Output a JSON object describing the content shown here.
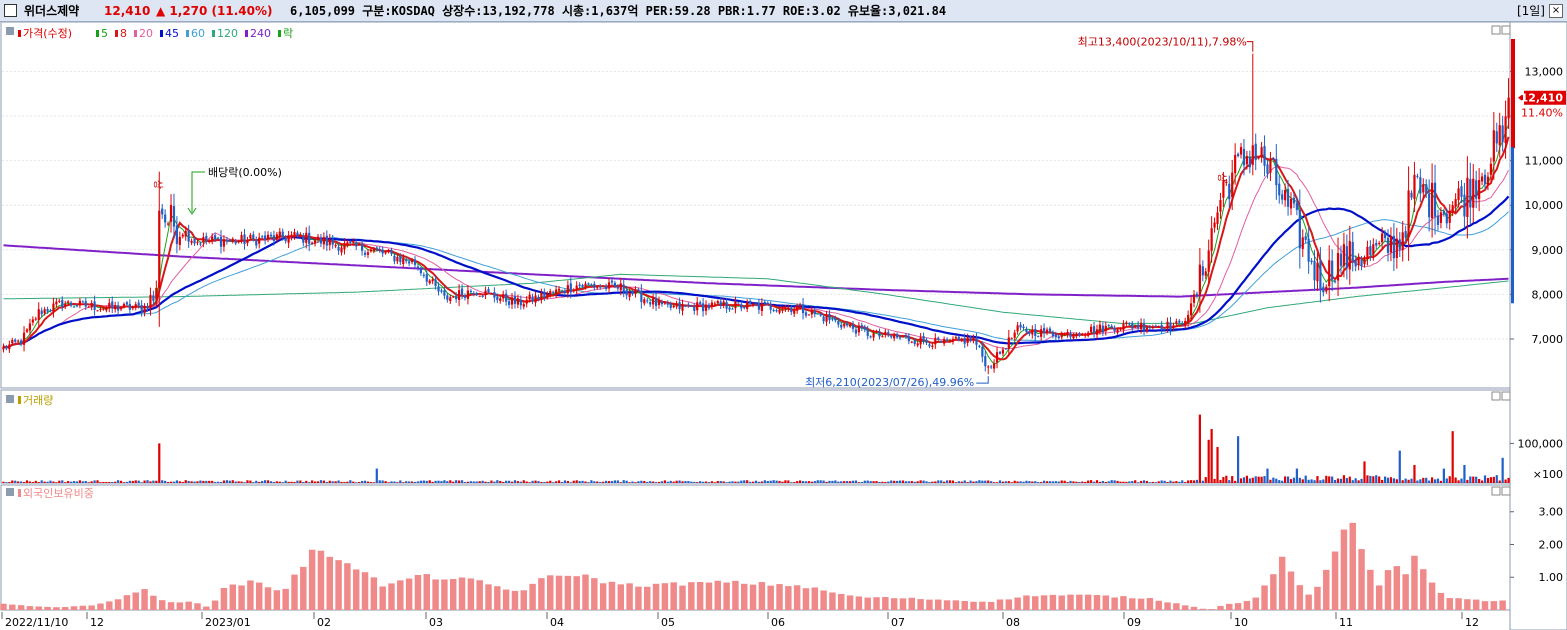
{
  "header": {
    "stock_name": "위더스제약",
    "price": "12,410",
    "change": "▲ 1,270 (11.40%)",
    "info": "6,105,099  구분:KOSDAQ 상장수:13,192,778 시총:1,637억 PER:59.28 PBR:1.77 ROE:3.02 유보율:3,021.84",
    "period": "[1일]",
    "close": "×"
  },
  "colors": {
    "up": "#e00000",
    "down": "#1f5fc8",
    "ma5": "#19a019",
    "ma8": "#d81818",
    "ma20": "#e060a0",
    "ma45": "#0010c8",
    "ma60": "#40a0d8",
    "ma120": "#30a878",
    "ma240": "#8020c8",
    "volume_up": "#e00000",
    "volume_down": "#1f5fc8",
    "foreign_bar": "#f08a8a"
  },
  "chart_data": [
    {
      "type": "candlestick",
      "title": "가격(수정)",
      "legend": [
        {
          "label": "가격(수정)",
          "color": "#e00000"
        },
        {
          "label": "5",
          "color": "#19a019"
        },
        {
          "label": "8",
          "color": "#d81818"
        },
        {
          "label": "20",
          "color": "#e060a0"
        },
        {
          "label": "45",
          "color": "#0010c8"
        },
        {
          "label": "60",
          "color": "#40a0d8"
        },
        {
          "label": "120",
          "color": "#30a878"
        },
        {
          "label": "240",
          "color": "#8020c8"
        },
        {
          "label": "락",
          "color": "#19a019"
        }
      ],
      "y_ticks": [
        "7,000",
        "8,000",
        "9,000",
        "10,000",
        "11,000",
        "12,000",
        "13,000"
      ],
      "ylim": [
        5900,
        13750
      ],
      "x_labels": [
        "2022/11/10",
        "12",
        "2023/01",
        "02",
        "03",
        "04",
        "05",
        "06",
        "07",
        "08",
        "09",
        "10",
        "11",
        "12"
      ],
      "current_price_label": "12,410",
      "current_change_label": "11.40%",
      "annotations": {
        "high": "최고13,400(2023/10/11),7.98%",
        "low": "최저6,210(2023/07/26),49.96%",
        "dividend": "배당락(0.00%)",
        "limit_up": "상"
      },
      "anchors": [
        [
          0,
          6800
        ],
        [
          6,
          6950
        ],
        [
          12,
          7600
        ],
        [
          20,
          7800
        ],
        [
          35,
          7700
        ],
        [
          48,
          7700
        ],
        [
          52,
          8000
        ],
        [
          53,
          10100
        ],
        [
          55,
          9700
        ],
        [
          60,
          9500
        ],
        [
          65,
          9200
        ],
        [
          80,
          9200
        ],
        [
          100,
          9300
        ],
        [
          115,
          9100
        ],
        [
          125,
          9000
        ],
        [
          140,
          8700
        ],
        [
          150,
          7900
        ],
        [
          160,
          8100
        ],
        [
          175,
          7800
        ],
        [
          195,
          8200
        ],
        [
          210,
          8150
        ],
        [
          225,
          7700
        ],
        [
          245,
          7750
        ],
        [
          270,
          7700
        ],
        [
          295,
          7100
        ],
        [
          320,
          6900
        ],
        [
          330,
          7000
        ],
        [
          335,
          6350
        ],
        [
          345,
          7200
        ],
        [
          360,
          7100
        ],
        [
          380,
          7300
        ],
        [
          400,
          7300
        ],
        [
          405,
          7800
        ],
        [
          415,
          10400
        ],
        [
          425,
          11300
        ],
        [
          432,
          10600
        ],
        [
          440,
          9500
        ],
        [
          448,
          8300
        ],
        [
          455,
          8800
        ],
        [
          465,
          8900
        ],
        [
          475,
          9200
        ],
        [
          480,
          10400
        ],
        [
          490,
          9900
        ],
        [
          497,
          10200
        ],
        [
          505,
          11000
        ],
        [
          511,
          11600
        ],
        [
          512,
          12410
        ]
      ],
      "high_point": {
        "x": 425,
        "price": 13400
      },
      "low_point": {
        "x": 335,
        "price": 6210
      },
      "ma240_points": [
        [
          0,
          9100
        ],
        [
          60,
          8850
        ],
        [
          120,
          8650
        ],
        [
          180,
          8450
        ],
        [
          240,
          8250
        ],
        [
          300,
          8100
        ],
        [
          350,
          8000
        ],
        [
          400,
          7950
        ],
        [
          430,
          8050
        ],
        [
          460,
          8150
        ],
        [
          490,
          8280
        ],
        [
          512,
          8350
        ]
      ],
      "ma120_points": [
        [
          0,
          7900
        ],
        [
          60,
          7950
        ],
        [
          120,
          8050
        ],
        [
          180,
          8250
        ],
        [
          210,
          8450
        ],
        [
          260,
          8350
        ],
        [
          300,
          8000
        ],
        [
          340,
          7600
        ],
        [
          380,
          7350
        ],
        [
          405,
          7350
        ],
        [
          430,
          7700
        ],
        [
          460,
          7950
        ],
        [
          490,
          8150
        ],
        [
          512,
          8300
        ]
      ]
    },
    {
      "type": "bar",
      "title": "거래량",
      "y_ticks": [
        "100,000"
      ],
      "y_unit": "×100",
      "spikes": [
        [
          53,
          0.55
        ],
        [
          127,
          0.2
        ],
        [
          407,
          0.95
        ],
        [
          410,
          0.6
        ],
        [
          411,
          0.75
        ],
        [
          413,
          0.5
        ],
        [
          420,
          0.65
        ],
        [
          430,
          0.2
        ],
        [
          440,
          0.2
        ],
        [
          463,
          0.3
        ],
        [
          475,
          0.45
        ],
        [
          480,
          0.25
        ],
        [
          490,
          0.2
        ],
        [
          493,
          0.72
        ],
        [
          497,
          0.25
        ],
        [
          510,
          0.35
        ]
      ]
    },
    {
      "type": "bar",
      "title": "외국인보유비중",
      "y_ticks": [
        "1.00",
        "2.00",
        "3.00"
      ],
      "ylim": [
        0,
        3.45
      ],
      "anchors": [
        [
          0,
          0.18
        ],
        [
          10,
          0.12
        ],
        [
          20,
          0.08
        ],
        [
          30,
          0.15
        ],
        [
          40,
          0.35
        ],
        [
          48,
          0.65
        ],
        [
          55,
          0.22
        ],
        [
          65,
          0.25
        ],
        [
          70,
          0.08
        ],
        [
          75,
          0.65
        ],
        [
          85,
          0.9
        ],
        [
          95,
          0.55
        ],
        [
          105,
          1.75
        ],
        [
          115,
          1.6
        ],
        [
          122,
          1.2
        ],
        [
          130,
          0.7
        ],
        [
          140,
          1.05
        ],
        [
          160,
          0.9
        ],
        [
          175,
          0.55
        ],
        [
          185,
          1.0
        ],
        [
          195,
          1.1
        ],
        [
          205,
          0.85
        ],
        [
          215,
          0.75
        ],
        [
          245,
          0.85
        ],
        [
          270,
          0.75
        ],
        [
          290,
          0.4
        ],
        [
          310,
          0.35
        ],
        [
          335,
          0.25
        ],
        [
          350,
          0.45
        ],
        [
          370,
          0.45
        ],
        [
          390,
          0.35
        ],
        [
          405,
          0.1
        ],
        [
          410,
          0.0
        ],
        [
          415,
          0.15
        ],
        [
          425,
          0.3
        ],
        [
          430,
          0.8
        ],
        [
          436,
          1.7
        ],
        [
          440,
          0.8
        ],
        [
          445,
          0.35
        ],
        [
          450,
          1.2
        ],
        [
          455,
          2.2
        ],
        [
          458,
          3.1
        ],
        [
          462,
          1.9
        ],
        [
          468,
          0.7
        ],
        [
          473,
          1.7
        ],
        [
          476,
          0.9
        ],
        [
          480,
          1.6
        ],
        [
          485,
          0.9
        ],
        [
          490,
          0.4
        ],
        [
          497,
          0.35
        ],
        [
          505,
          0.25
        ],
        [
          512,
          0.3
        ]
      ]
    }
  ]
}
